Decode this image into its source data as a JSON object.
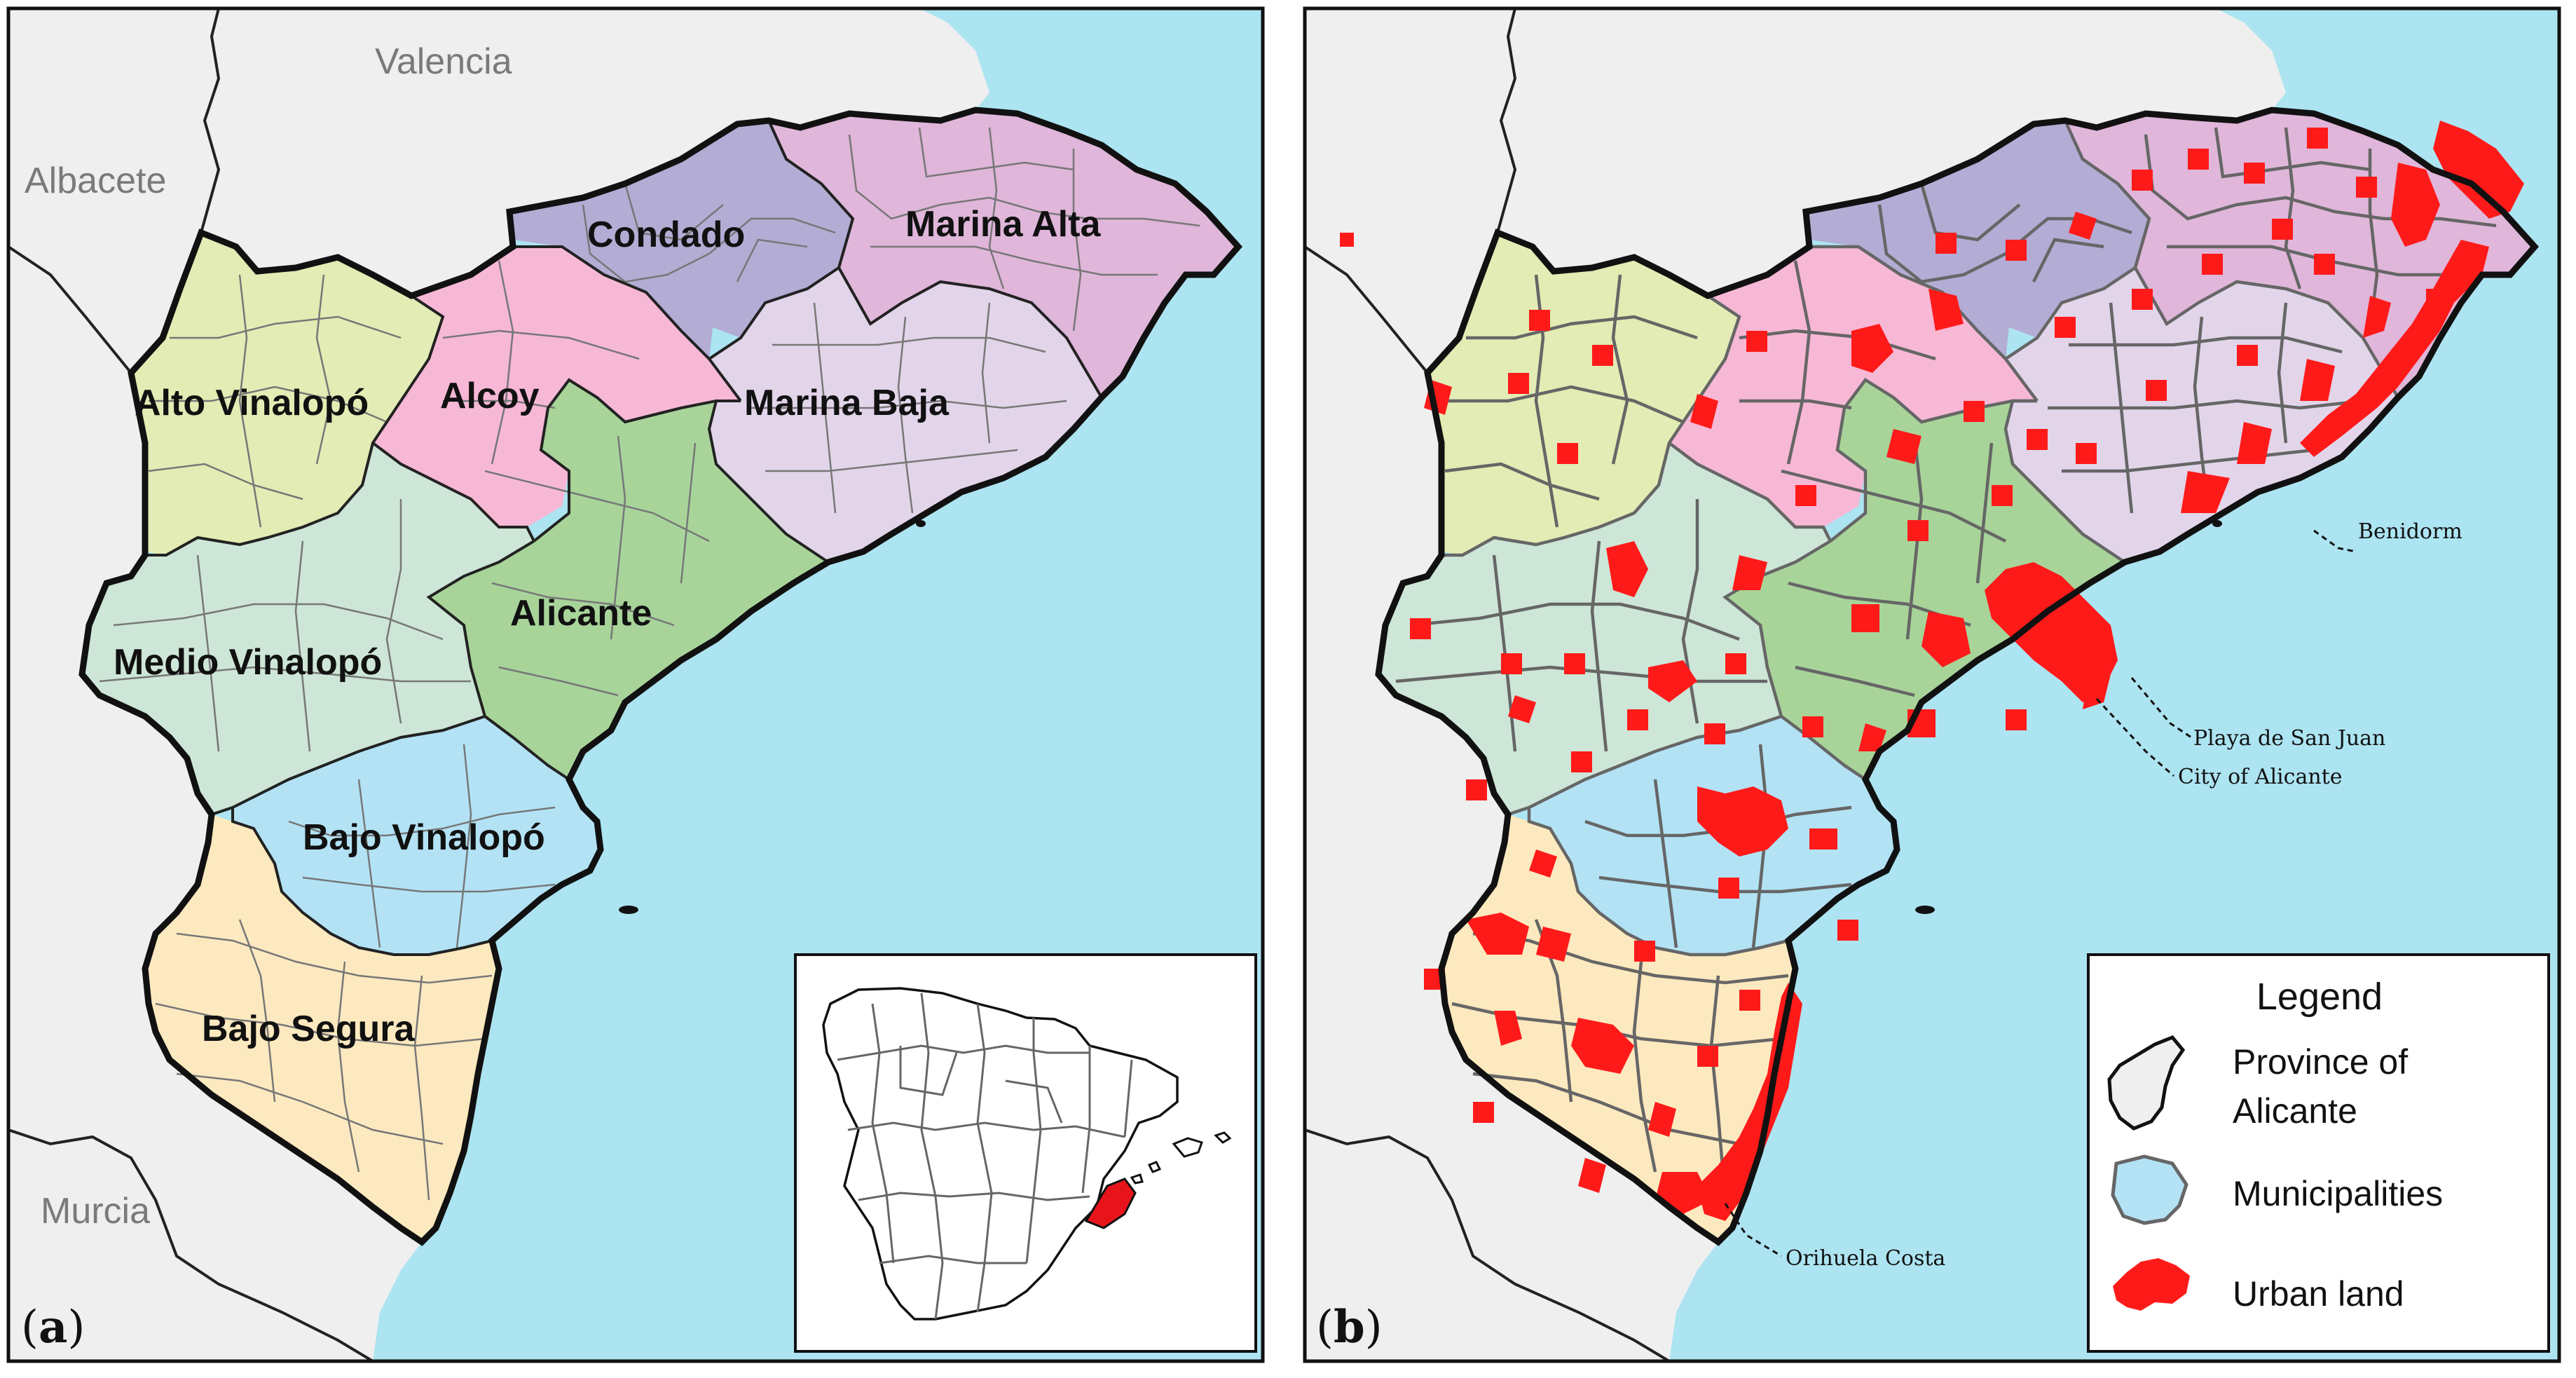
{
  "panels": [
    {
      "id": "a",
      "panel_label": "a",
      "neighbors": {
        "valencia": "Valencia",
        "albacete": "Albacete",
        "murcia": "Murcia"
      },
      "regions": [
        {
          "name": "Condado",
          "color": "#b3acd4"
        },
        {
          "name": "Marina Alta",
          "color": "#e0b6da"
        },
        {
          "name": "Alto Vinalopó",
          "color": "#e2ecb4"
        },
        {
          "name": "Alcoy",
          "color": "#f7b8d6"
        },
        {
          "name": "Marina Baja",
          "color": "#e2d5ea"
        },
        {
          "name": "Alicante",
          "color": "#a8d49a"
        },
        {
          "name": "Medio Vinalopó",
          "color": "#cde6d7"
        },
        {
          "name": "Bajo Vinalopó",
          "color": "#b3e2f5"
        },
        {
          "name": "Bajo Segura",
          "color": "#fde9bf"
        }
      ],
      "inset": {
        "highlight_color": "#e8141c"
      }
    },
    {
      "id": "b",
      "panel_label": "b",
      "callouts": [
        "Benidorm",
        "Playa de San Juan",
        "City of Alicante",
        "Orihuela Costa"
      ],
      "legend": {
        "title": "Legend",
        "items": [
          {
            "label_line1": "Province of",
            "label_line2": "Alicante",
            "swatch": "#efefef"
          },
          {
            "label_line1": "Municipalities",
            "label_line2": "",
            "swatch": "#b3e2f5"
          },
          {
            "label_line1": "Urban land",
            "label_line2": "",
            "swatch": "#ff1a1a"
          }
        ]
      }
    }
  ],
  "colors": {
    "sea": "#ade4f1",
    "land_outside": "#efefef",
    "urban": "#ff1a1a",
    "border": "#111111"
  }
}
